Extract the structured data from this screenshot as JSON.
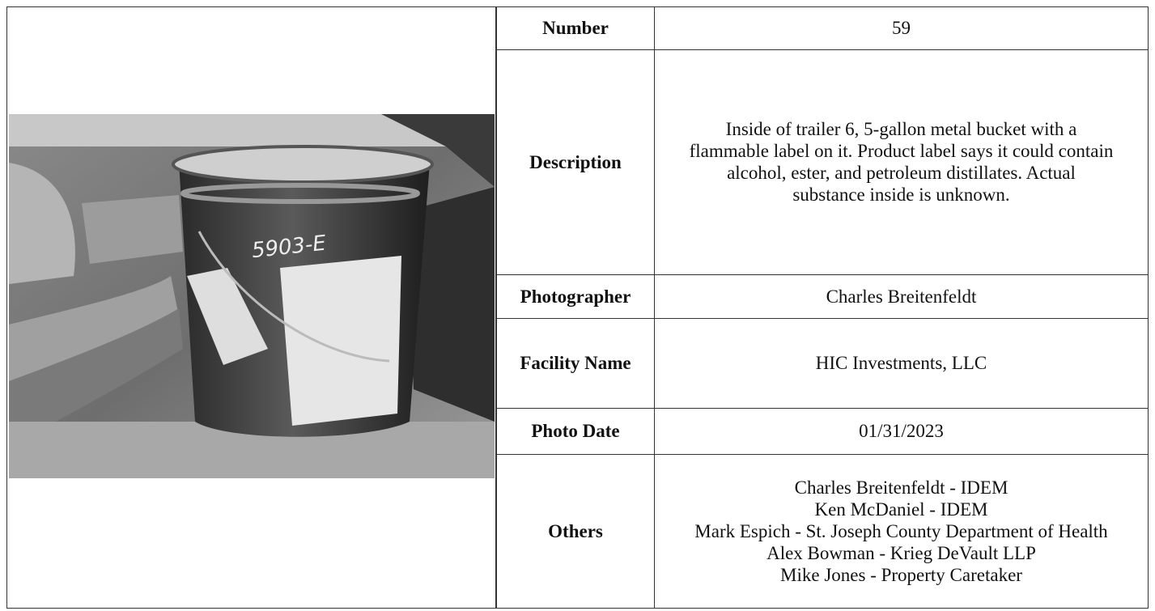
{
  "photo": {
    "handwritten_label": "5903-E"
  },
  "table": {
    "rows": [
      [
        "Number",
        "59"
      ],
      [
        "Description",
        "Inside of trailer 6, 5-gallon metal bucket with a flammable label on it. Product label says it could contain alcohol, ester, and petroleum distillates. Actual substance inside is unknown."
      ],
      [
        "Photographer",
        "Charles Breitenfeldt"
      ],
      [
        "Facility Name",
        "HIC Investments, LLC"
      ],
      [
        "Photo Date",
        "01/31/2023"
      ],
      [
        "Others",
        [
          "Charles Breitenfeldt - IDEM",
          "Ken McDaniel - IDEM",
          "Mark Espich - St. Joseph County Department of Health",
          "Alex Bowman - Krieg DeVault LLP",
          "Mike Jones - Property Caretaker"
        ]
      ]
    ]
  }
}
